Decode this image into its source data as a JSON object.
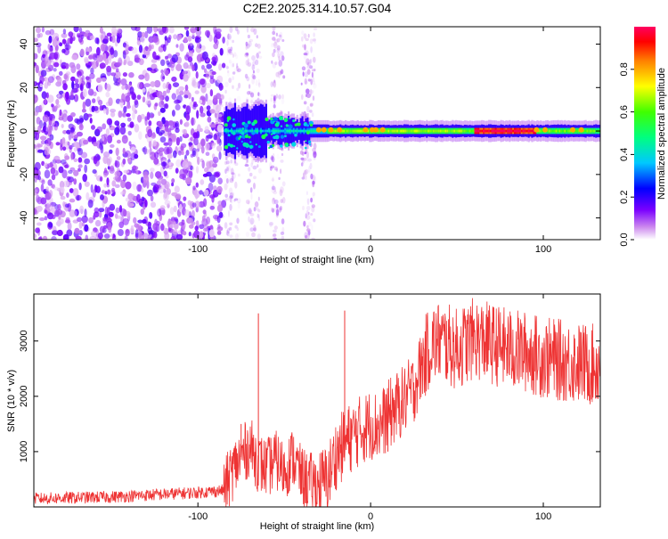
{
  "title": "C2E2.2025.314.10.57.G04",
  "chart_data": [
    {
      "type": "heatmap",
      "title": "C2E2.2025.314.10.57.G04",
      "xlabel": "Height of straight line (km)",
      "ylabel": "Frequency (Hz)",
      "xlim": [
        -195,
        133
      ],
      "ylim": [
        -50,
        48
      ],
      "xticks": [
        -100,
        0,
        100
      ],
      "yticks": [
        -40,
        -20,
        0,
        20,
        40
      ],
      "colorbar": {
        "label": "Normalized spectral amplitude",
        "range": [
          0,
          1
        ],
        "ticks": [
          "0.0",
          "0.2",
          "0.4",
          "0.6",
          "0.8"
        ],
        "colors": [
          "#ffffff",
          "#cc88ee",
          "#7a00ff",
          "#0000ff",
          "#00c8ff",
          "#00ff80",
          "#40ff00",
          "#ffff00",
          "#ff8000",
          "#ff0000",
          "#ff0060"
        ]
      },
      "features": {
        "noise_region_x": [
          -195,
          -85
        ],
        "sparse_noise_x": [
          -85,
          -30
        ],
        "signal_x": [
          -85,
          133
        ],
        "signal_frequency_hz": 0,
        "strong_signal_x": [
          60,
          95
        ]
      }
    },
    {
      "type": "line",
      "xlabel": "Height of straight line (km)",
      "ylabel": "SNR (10 * v/v)",
      "xlim": [
        -195,
        133
      ],
      "ylim": [
        0,
        3850
      ],
      "xticks": [
        -100,
        0,
        100
      ],
      "yticks": [
        1000,
        2000,
        3000
      ],
      "series": [
        {
          "color": "#ee3333",
          "x": [
            -195,
            -150,
            -100,
            -85,
            -80,
            -75,
            -70,
            -65,
            -60,
            -55,
            -50,
            -45,
            -40,
            -35,
            -30,
            -25,
            -20,
            -15,
            -10,
            -5,
            0,
            5,
            10,
            15,
            20,
            25,
            30,
            35,
            40,
            50,
            60,
            70,
            80,
            90,
            100,
            110,
            120,
            133
          ],
          "y": [
            150,
            180,
            260,
            300,
            650,
            900,
            1100,
            800,
            700,
            850,
            650,
            900,
            550,
            450,
            400,
            500,
            950,
            1150,
            1300,
            1400,
            1500,
            1450,
            1650,
            1800,
            1950,
            2150,
            2600,
            2950,
            3000,
            2850,
            3050,
            2950,
            2850,
            2800,
            2700,
            2650,
            2600,
            2550
          ]
        }
      ],
      "spikes": [
        [
          -65,
          3500
        ],
        [
          -15,
          3550
        ],
        [
          -75,
          1500
        ],
        [
          10,
          1000
        ]
      ]
    }
  ]
}
